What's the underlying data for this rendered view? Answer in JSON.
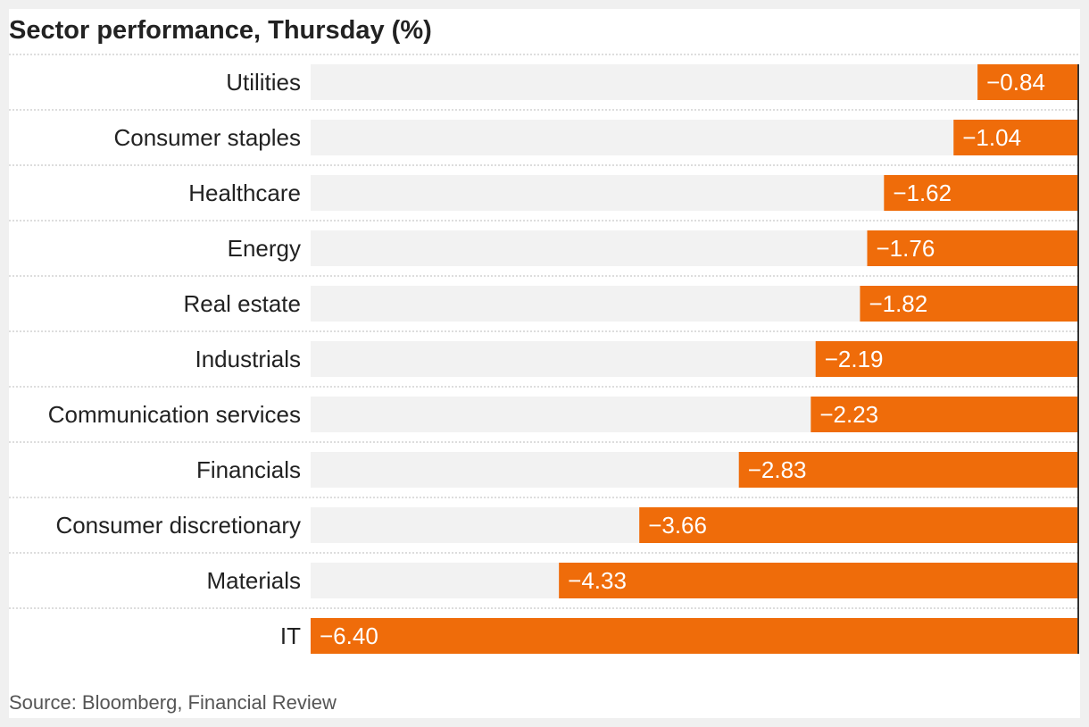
{
  "chart_data": {
    "type": "bar",
    "orientation": "horizontal",
    "title": "Sector performance, Thursday (%)",
    "source": "Source: Bloomberg, Financial Review",
    "categories": [
      "Utilities",
      "Consumer staples",
      "Healthcare",
      "Energy",
      "Real estate",
      "Industrials",
      "Communication services",
      "Financials",
      "Consumer discretionary",
      "Materials",
      "IT"
    ],
    "values": [
      -0.84,
      -1.04,
      -1.62,
      -1.76,
      -1.82,
      -2.19,
      -2.23,
      -2.83,
      -3.66,
      -4.33,
      -6.4
    ],
    "value_labels": [
      "−0.84",
      "−1.04",
      "−1.62",
      "−1.76",
      "−1.82",
      "−2.19",
      "−2.23",
      "−2.83",
      "−3.66",
      "−4.33",
      "−6.40"
    ],
    "xlim": [
      -6.4,
      0
    ],
    "grid": false,
    "colors": {
      "bar": "#ef6c0a",
      "track": "#f2f2f2",
      "separator": "#bbbbbb",
      "zero_line": "#333333"
    }
  }
}
